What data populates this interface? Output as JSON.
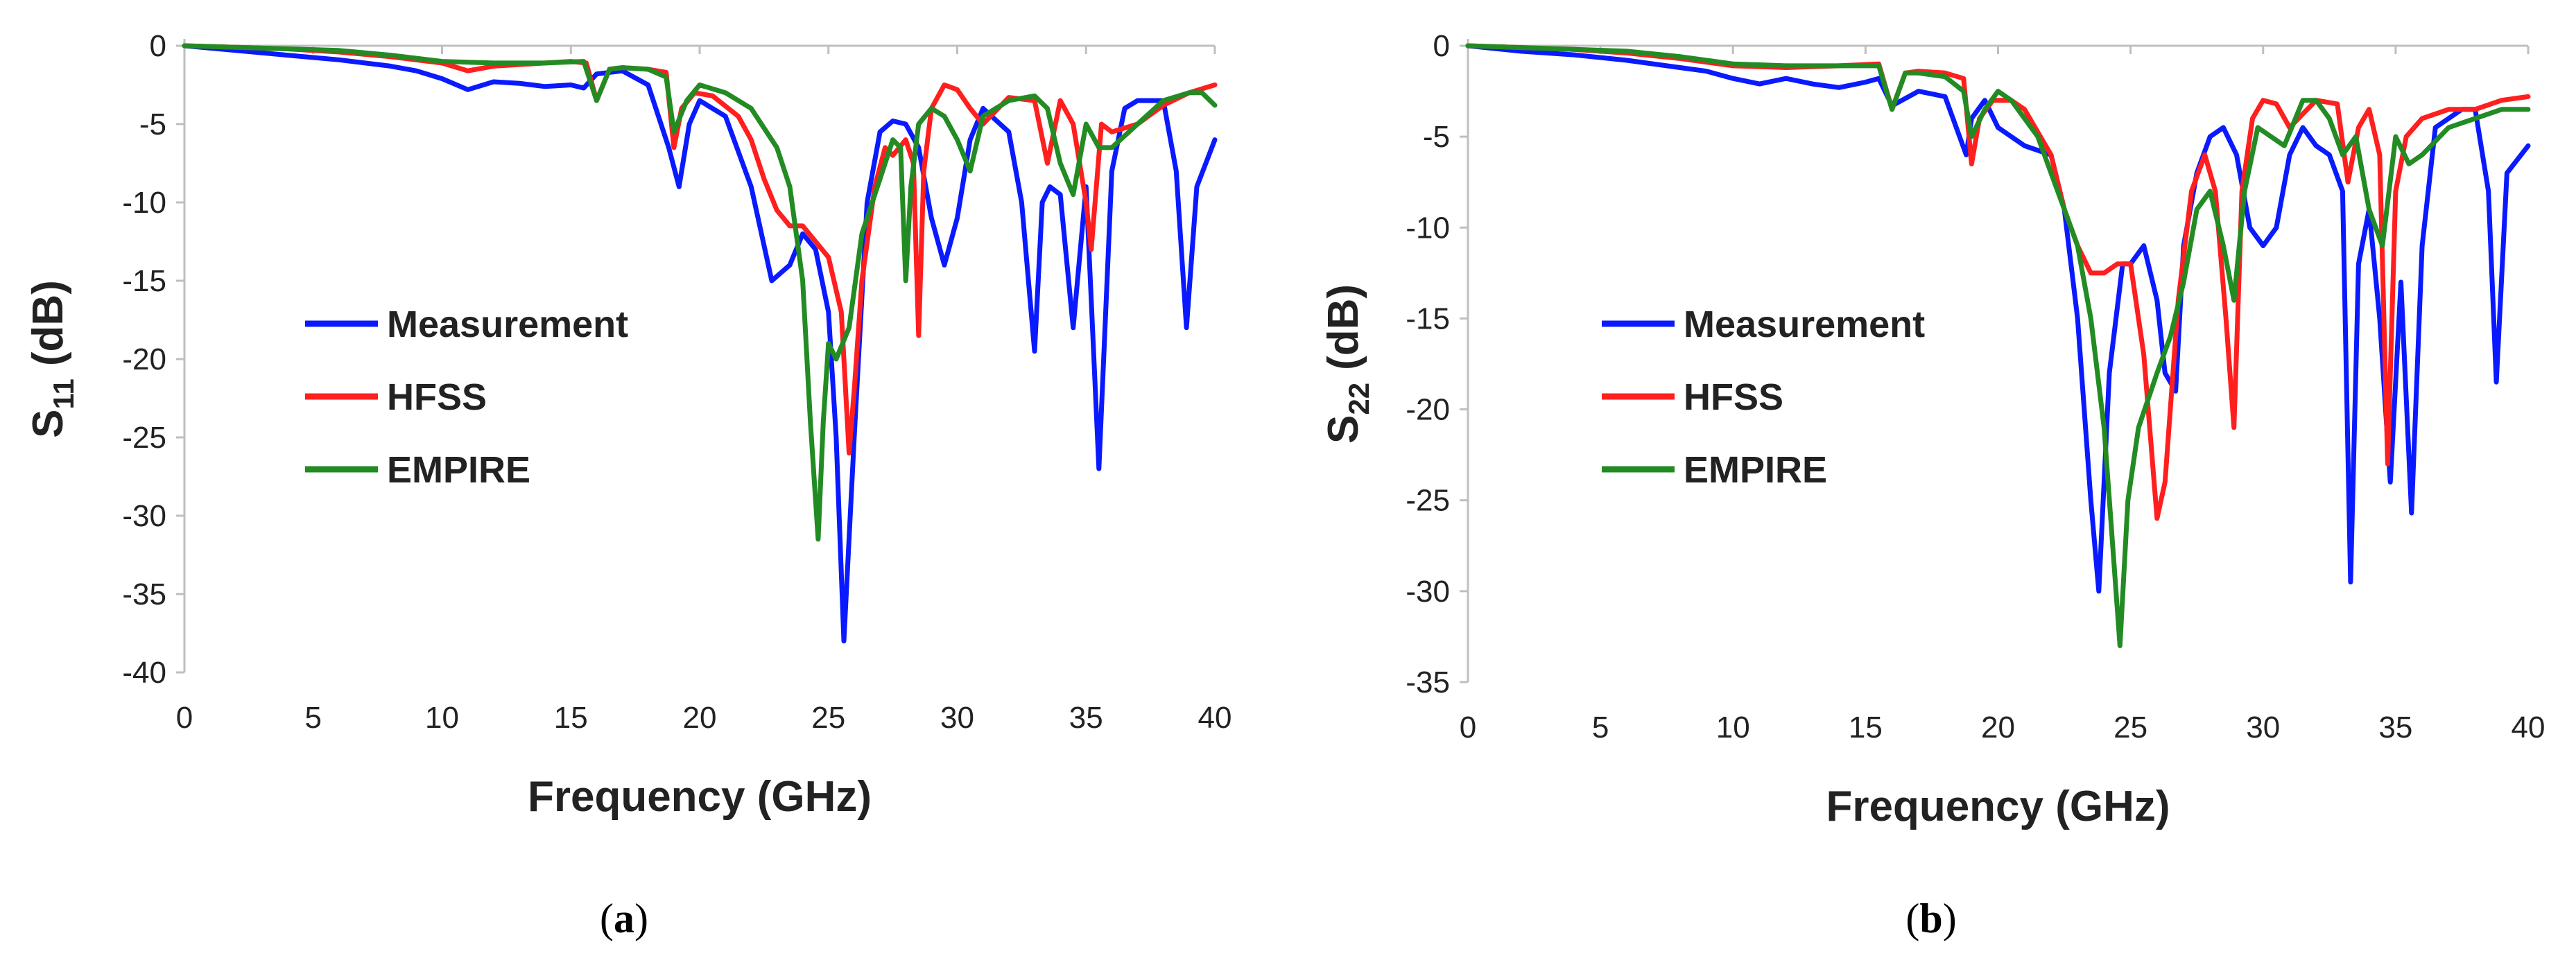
{
  "colors": {
    "Measurement": "#0a1aff",
    "HFSS": "#ff1f1f",
    "EMPIRE": "#238b23",
    "axis": "#bfbfbf",
    "text": "#222222"
  },
  "chart_data": [
    {
      "type": "line",
      "caption": "a",
      "xlabel": "Frequency (GHz)",
      "ylabel_main": "S",
      "ylabel_sub": "11",
      "ylabel_unit": "(dB)",
      "xlim": [
        0,
        40
      ],
      "ylim": [
        -40,
        0
      ],
      "xticks": [
        0,
        5,
        10,
        15,
        20,
        25,
        30,
        35,
        40
      ],
      "yticks": [
        0,
        -5,
        -10,
        -15,
        -20,
        -25,
        -30,
        -35,
        -40
      ],
      "grid": false,
      "legend": "center-left",
      "series": [
        {
          "name": "Measurement",
          "color": "#0a1aff",
          "x": [
            0,
            2,
            4,
            6,
            8,
            9,
            10,
            11,
            12,
            13,
            14,
            15,
            15.5,
            16,
            17,
            18,
            18.8,
            19.2,
            19.6,
            20,
            21,
            22,
            22.8,
            23.5,
            24,
            24.5,
            25,
            25.3,
            25.6,
            26,
            26.5,
            27,
            27.5,
            28,
            28.5,
            29,
            29.5,
            30,
            30.5,
            31,
            32,
            32.5,
            33,
            33.3,
            33.6,
            34,
            34.5,
            35,
            35.5,
            36,
            36.5,
            37,
            37.5,
            38,
            38.5,
            38.9,
            39.3,
            40
          ],
          "y": [
            0,
            -0.3,
            -0.6,
            -0.9,
            -1.3,
            -1.6,
            -2.1,
            -2.8,
            -2.3,
            -2.4,
            -2.6,
            -2.5,
            -2.7,
            -1.8,
            -1.6,
            -2.5,
            -6.5,
            -9,
            -5,
            -3.5,
            -4.5,
            -9,
            -15,
            -14,
            -12,
            -13,
            -17,
            -25,
            -38,
            -25,
            -10,
            -5.5,
            -4.8,
            -5,
            -6.5,
            -11,
            -14,
            -11,
            -6,
            -4,
            -5.5,
            -10,
            -19.5,
            -10,
            -9,
            -9.5,
            -18,
            -9,
            -27,
            -8,
            -4,
            -3.5,
            -3.5,
            -3.5,
            -8,
            -18,
            -9,
            -6
          ]
        },
        {
          "name": "HFSS",
          "color": "#ff1f1f",
          "x": [
            0,
            2,
            4,
            6,
            8,
            10,
            11,
            12,
            13,
            14,
            15,
            15.6,
            16,
            16.5,
            17,
            18,
            18.7,
            19,
            19.3,
            19.8,
            20.5,
            21.5,
            22,
            22.5,
            23,
            23.5,
            24,
            24.5,
            25,
            25.5,
            25.8,
            26,
            26.3,
            26.8,
            27.2,
            27.5,
            28,
            28.3,
            28.5,
            28.7,
            29,
            29.5,
            30,
            30.5,
            31,
            32,
            33,
            33.5,
            34,
            34.5,
            35,
            35.2,
            35.6,
            36,
            37,
            38,
            39,
            40
          ],
          "y": [
            0,
            -0.1,
            -0.2,
            -0.4,
            -0.7,
            -1.1,
            -1.6,
            -1.3,
            -1.2,
            -1.1,
            -1,
            -1.1,
            -3.5,
            -1.5,
            -1.4,
            -1.5,
            -1.7,
            -6.5,
            -4,
            -3,
            -3.2,
            -4.5,
            -6,
            -8.5,
            -10.5,
            -11.5,
            -11.5,
            -12.5,
            -13.5,
            -17,
            -26,
            -22,
            -15,
            -9,
            -6.5,
            -7,
            -6,
            -7.5,
            -18.5,
            -8,
            -4,
            -2.5,
            -2.8,
            -4,
            -5,
            -3.3,
            -3.5,
            -7.5,
            -3.5,
            -5,
            -10,
            -13,
            -5,
            -5.5,
            -5,
            -3.8,
            -3,
            -2.5
          ]
        },
        {
          "name": "EMPIRE",
          "color": "#238b23",
          "x": [
            0,
            2,
            4,
            6,
            8,
            10,
            12,
            14,
            15.5,
            16,
            16.5,
            17,
            18,
            18.7,
            19,
            19.5,
            20,
            21,
            22,
            23,
            23.5,
            24,
            24.3,
            24.6,
            24.8,
            25,
            25.3,
            25.8,
            26.3,
            27,
            27.5,
            27.8,
            28,
            28.2,
            28.5,
            29,
            29.5,
            30,
            30.5,
            31,
            31.5,
            32,
            33,
            33.5,
            34,
            34.5,
            35,
            35.5,
            36,
            37,
            38,
            39,
            39.5,
            40
          ],
          "y": [
            0,
            -0.1,
            -0.2,
            -0.3,
            -0.6,
            -1,
            -1.1,
            -1.1,
            -1,
            -3.5,
            -1.5,
            -1.4,
            -1.5,
            -2,
            -5.5,
            -3.5,
            -2.5,
            -3,
            -4,
            -6.5,
            -9,
            -15,
            -24,
            -31.5,
            -24,
            -19,
            -20,
            -18,
            -12,
            -8.5,
            -6,
            -6.5,
            -15,
            -9,
            -5,
            -4,
            -4.5,
            -6,
            -8,
            -4.5,
            -4,
            -3.5,
            -3.2,
            -4,
            -7.5,
            -9.5,
            -5,
            -6.5,
            -6.5,
            -5,
            -3.5,
            -3,
            -3,
            -3.8
          ]
        }
      ]
    },
    {
      "type": "line",
      "caption": "b",
      "xlabel": "Frequency (GHz)",
      "ylabel_main": "S",
      "ylabel_sub": "22",
      "ylabel_unit": "(dB)",
      "xlim": [
        0,
        40
      ],
      "ylim": [
        -35,
        0
      ],
      "xticks": [
        0,
        5,
        10,
        15,
        20,
        25,
        30,
        35,
        40
      ],
      "yticks": [
        0,
        -5,
        -10,
        -15,
        -20,
        -25,
        -30,
        -35
      ],
      "grid": false,
      "legend": "center-left",
      "series": [
        {
          "name": "Measurement",
          "color": "#0a1aff",
          "x": [
            0,
            2,
            4,
            6,
            8,
            9,
            10,
            11,
            12,
            13,
            14,
            15,
            15.5,
            16,
            17,
            18,
            18.8,
            19,
            19.5,
            20,
            21,
            22,
            22.5,
            23,
            23.5,
            23.8,
            24.2,
            24.7,
            25,
            25.5,
            26,
            26.3,
            26.7,
            27,
            27.5,
            28,
            28.5,
            29,
            29.5,
            30,
            30.5,
            31,
            31.5,
            32,
            32.5,
            33,
            33.3,
            33.6,
            34,
            34.4,
            34.8,
            35.2,
            35.6,
            36,
            36.5,
            37,
            37.5,
            38,
            38.5,
            38.8,
            39.2,
            40
          ],
          "y": [
            0,
            -0.3,
            -0.5,
            -0.8,
            -1.2,
            -1.4,
            -1.8,
            -2.1,
            -1.8,
            -2.1,
            -2.3,
            -2,
            -1.8,
            -3.3,
            -2.5,
            -2.8,
            -6,
            -4,
            -3,
            -4.5,
            -5.5,
            -6,
            -9,
            -15,
            -25,
            -30,
            -18,
            -12,
            -12,
            -11,
            -14,
            -18,
            -19,
            -11,
            -7,
            -5,
            -4.5,
            -6,
            -10,
            -11,
            -10,
            -6,
            -4.5,
            -5.5,
            -6,
            -8,
            -29.5,
            -12,
            -9,
            -15,
            -24,
            -13,
            -25.7,
            -11,
            -4.5,
            -4,
            -3.5,
            -3.5,
            -8,
            -18.5,
            -7,
            -5.5
          ]
        },
        {
          "name": "HFSS",
          "color": "#ff1f1f",
          "x": [
            0,
            2,
            4,
            6,
            8,
            10,
            12,
            14,
            15.5,
            16,
            16.5,
            17,
            18,
            18.7,
            19,
            19.3,
            19.8,
            20.5,
            21,
            22,
            22.5,
            23,
            23.5,
            24,
            24.5,
            25,
            25.5,
            26,
            26.3,
            26.8,
            27.3,
            27.8,
            28.2,
            28.6,
            28.9,
            29.2,
            29.6,
            30,
            30.5,
            31,
            32,
            32.8,
            33.2,
            33.6,
            34,
            34.4,
            34.7,
            35,
            35.4,
            36,
            37,
            38,
            39,
            40
          ],
          "y": [
            0,
            -0.1,
            -0.2,
            -0.4,
            -0.7,
            -1.1,
            -1.2,
            -1.1,
            -1,
            -3.5,
            -1.5,
            -1.4,
            -1.5,
            -1.8,
            -6.5,
            -4,
            -3,
            -3,
            -3.5,
            -6,
            -9,
            -11,
            -12.5,
            -12.5,
            -12,
            -12,
            -17,
            -26,
            -24,
            -14,
            -8,
            -6,
            -8,
            -15,
            -21,
            -8,
            -4,
            -3,
            -3.2,
            -4.5,
            -3,
            -3.2,
            -7.5,
            -4.5,
            -3.5,
            -6,
            -23,
            -8,
            -5,
            -4,
            -3.5,
            -3.5,
            -3,
            -2.8
          ]
        },
        {
          "name": "EMPIRE",
          "color": "#238b23",
          "x": [
            0,
            2,
            4,
            6,
            8,
            10,
            12,
            14,
            15.5,
            16,
            16.5,
            17,
            18,
            18.7,
            19,
            19.5,
            20,
            20.5,
            21,
            21.5,
            22,
            22.5,
            23,
            23.5,
            24,
            24.3,
            24.6,
            24.9,
            25.3,
            26,
            26.5,
            27,
            27.5,
            28,
            28.5,
            28.9,
            29.3,
            29.8,
            30.3,
            30.8,
            31.5,
            32,
            32.5,
            33,
            33.5,
            34,
            34.5,
            35,
            35.5,
            36,
            37,
            38,
            39,
            40
          ],
          "y": [
            0,
            -0.1,
            -0.2,
            -0.3,
            -0.6,
            -1,
            -1.1,
            -1.1,
            -1.1,
            -3.5,
            -1.5,
            -1.5,
            -1.7,
            -2.5,
            -5,
            -3.5,
            -2.5,
            -3,
            -4,
            -5,
            -7,
            -9,
            -11,
            -15,
            -21,
            -27,
            -33,
            -25,
            -21,
            -18,
            -16,
            -13,
            -9,
            -8,
            -11,
            -14,
            -8,
            -4.5,
            -5,
            -5.5,
            -3,
            -3,
            -4,
            -6,
            -5,
            -9,
            -11,
            -5,
            -6.5,
            -6,
            -4.5,
            -4,
            -3.5,
            -3.5
          ]
        }
      ]
    }
  ]
}
